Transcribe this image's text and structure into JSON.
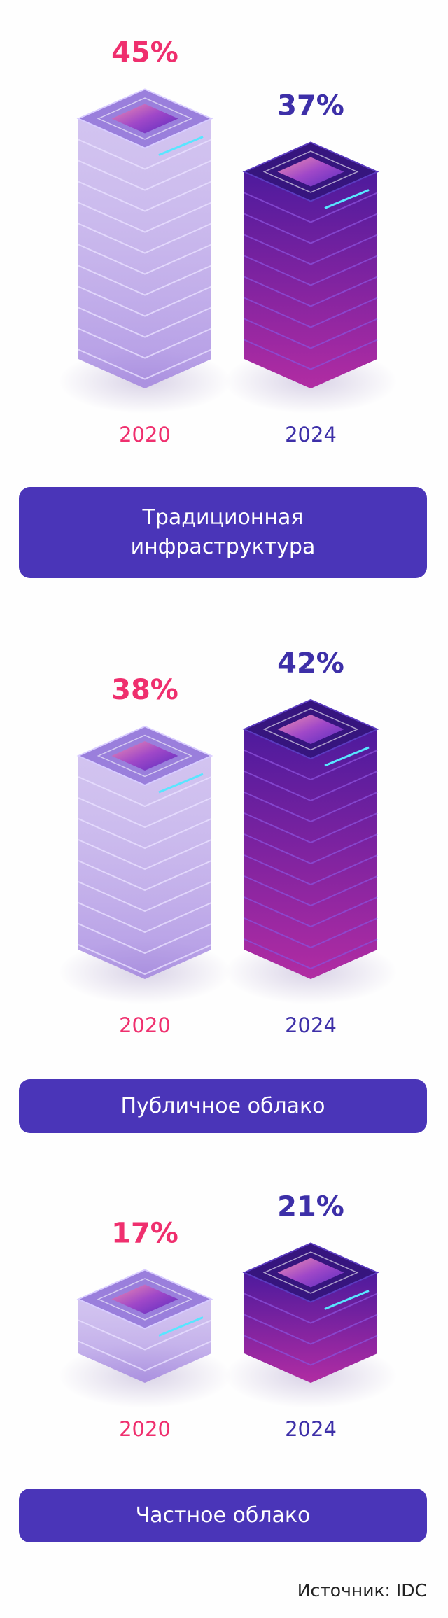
{
  "chart_data": [
    {
      "type": "bar",
      "title": "Традиционная инфраструктура",
      "categories": [
        "2020",
        "2024"
      ],
      "values": [
        45,
        37
      ],
      "value_labels": [
        "45%",
        "37%"
      ],
      "colors": [
        "#b39be6",
        "#6b22b0"
      ]
    },
    {
      "type": "bar",
      "title": "Публичное облако",
      "categories": [
        "2020",
        "2024"
      ],
      "values": [
        38,
        42
      ],
      "value_labels": [
        "38%",
        "42%"
      ],
      "colors": [
        "#b39be6",
        "#6b22b0"
      ]
    },
    {
      "type": "bar",
      "title": "Частное облако",
      "categories": [
        "2020",
        "2024"
      ],
      "values": [
        17,
        21
      ],
      "value_labels": [
        "17%",
        "21%"
      ],
      "colors": [
        "#b39be6",
        "#6b22b0"
      ]
    }
  ],
  "source": "Источник: IDC"
}
